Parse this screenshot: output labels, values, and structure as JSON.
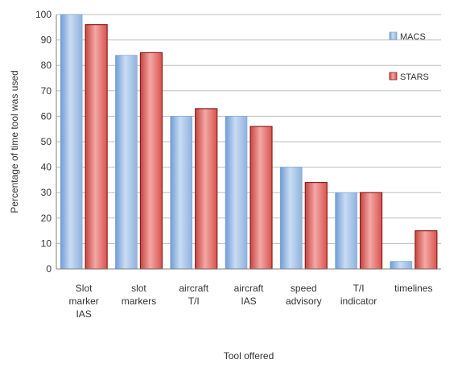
{
  "chart_data": {
    "type": "bar",
    "title": "",
    "xlabel": "Tool offered",
    "ylabel": "Percentage of time tool was used",
    "ylim": [
      0,
      100
    ],
    "yticks": [
      0,
      10,
      20,
      30,
      40,
      50,
      60,
      70,
      80,
      90,
      100
    ],
    "grid": true,
    "legend_position": "right",
    "categories": [
      [
        "Slot",
        "marker",
        "IAS"
      ],
      [
        "slot",
        "markers"
      ],
      [
        "aircraft",
        "T/I"
      ],
      [
        "aircraft",
        "IAS"
      ],
      [
        "speed",
        "advisory"
      ],
      [
        "T/I",
        "indicator"
      ],
      [
        "timelines"
      ]
    ],
    "series": [
      {
        "name": "MACS",
        "color": "#8fb2df",
        "values": [
          100,
          84,
          60,
          60,
          40,
          30,
          3
        ]
      },
      {
        "name": "STARS",
        "color": "#d9534f",
        "values": [
          96,
          85,
          63,
          56,
          34,
          30,
          15
        ]
      }
    ]
  }
}
